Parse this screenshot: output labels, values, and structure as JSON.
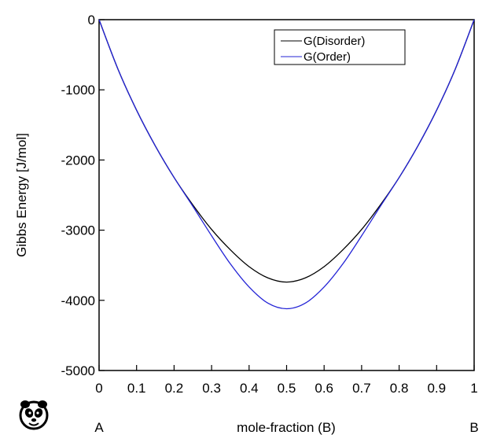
{
  "chart_data": {
    "type": "line",
    "title": "",
    "xlabel": "mole-fraction (B)",
    "ylabel": "Gibbs Energy [J/mol]",
    "xlim": [
      0,
      1
    ],
    "ylim": [
      -5000,
      0
    ],
    "x_ticks": [
      0,
      0.1,
      0.2,
      0.3,
      0.4,
      0.5,
      0.6,
      0.7,
      0.8,
      0.9,
      1
    ],
    "x_tick_labels": [
      "0",
      "0.1",
      "0.2",
      "0.3",
      "0.4",
      "0.5",
      "0.6",
      "0.7",
      "0.8",
      "0.9",
      "1"
    ],
    "y_ticks": [
      0,
      -1000,
      -2000,
      -3000,
      -4000,
      -5000
    ],
    "y_tick_labels": [
      "0",
      "-1000",
      "-2000",
      "-3000",
      "-4000",
      "-5000"
    ],
    "x_end_labels": {
      "left": "A",
      "right": "B"
    },
    "grid": false,
    "legend_position": "top-right",
    "x": [
      0,
      0.05,
      0.1,
      0.15,
      0.2,
      0.25,
      0.3,
      0.35,
      0.4,
      0.45,
      0.5,
      0.55,
      0.6,
      0.65,
      0.7,
      0.75,
      0.8,
      0.85,
      0.9,
      0.95,
      1
    ],
    "series": [
      {
        "name": "G(Disorder)",
        "color": "#000000",
        "values": [
          0,
          -700,
          -1290,
          -1800,
          -2250,
          -2640,
          -2990,
          -3280,
          -3520,
          -3680,
          -3740,
          -3680,
          -3520,
          -3280,
          -2990,
          -2640,
          -2250,
          -1800,
          -1290,
          -700,
          0
        ]
      },
      {
        "name": "G(Order)",
        "color": "#2323d6",
        "values": [
          0,
          -700,
          -1290,
          -1800,
          -2250,
          -2660,
          -3080,
          -3480,
          -3810,
          -4040,
          -4120,
          -4040,
          -3810,
          -3480,
          -3080,
          -2660,
          -2250,
          -1800,
          -1290,
          -700,
          0
        ]
      }
    ]
  },
  "icons": {
    "logo": "panda-logo-icon"
  }
}
